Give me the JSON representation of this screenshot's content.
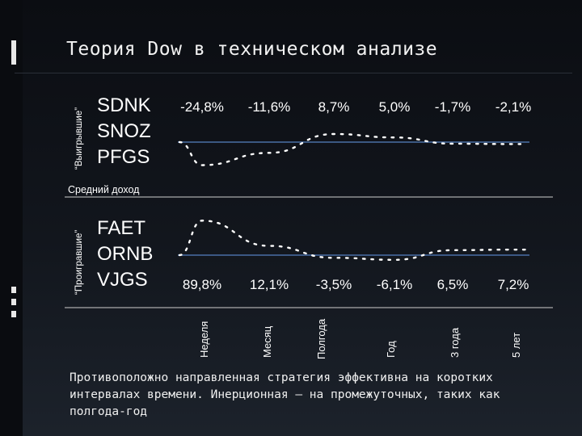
{
  "slide": {
    "title": "Теория Dow в техническом анализе",
    "caption": "Противоположно направленная стратегия эффективна на коротких интервалах времени. Инерционная – на промежуточных, таких как полгода-год"
  },
  "chart_data": [
    {
      "type": "line",
      "group_label": "“Выигрывшие”",
      "tickers": [
        "SDNK",
        "SNOZ",
        "PFGS"
      ],
      "row_label": "Средний доход",
      "categories": [
        "Неделя",
        "Месяц",
        "Полгода",
        "Год",
        "3 года",
        "5 лет"
      ],
      "value_labels": [
        "-24,8%",
        "-11,6%",
        "8,7%",
        "5,0%",
        "-1,7%",
        "-2,1%"
      ],
      "values": [
        -24.8,
        -11.6,
        8.7,
        5.0,
        -1.7,
        -2.1
      ],
      "style": "dotted",
      "baseline": 0
    },
    {
      "type": "line",
      "group_label": "“Проигравшие”",
      "tickers": [
        "FAET",
        "ORNB",
        "VJGS"
      ],
      "categories": [
        "Неделя",
        "Месяц",
        "Полгода",
        "Год",
        "3 года",
        "5 лет"
      ],
      "value_labels": [
        "89,8%",
        "12,1%",
        "-3,5%",
        "-6,1%",
        "6,5%",
        "7,2%"
      ],
      "values": [
        89.8,
        12.1,
        -3.5,
        -6.1,
        6.5,
        7.2
      ],
      "style": "dotted",
      "baseline": 0
    }
  ],
  "colors": {
    "line": "#ffffff",
    "baseline": "#4a6fa5",
    "separator": "#cfcfcf"
  }
}
